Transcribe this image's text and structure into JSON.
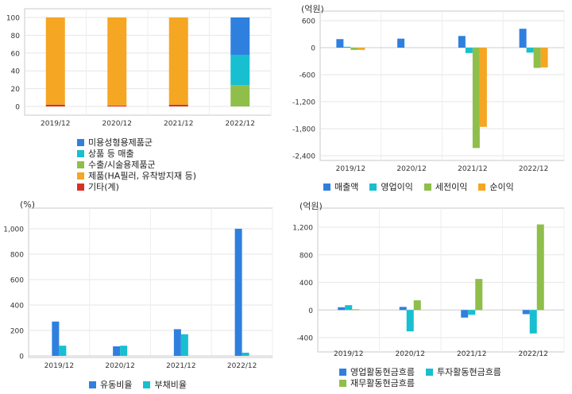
{
  "chart_data": [
    {
      "type": "bar",
      "stacked": true,
      "title": "",
      "unit": "",
      "categories": [
        "2019/12",
        "2020/12",
        "2021/12",
        "2022/12"
      ],
      "ylim": [
        0,
        100
      ],
      "yticks": [
        "0",
        "20",
        "40",
        "60",
        "80",
        "100"
      ],
      "grid": true,
      "legend_position": "bottom",
      "series": [
        {
          "name": "미용성형용제품군",
          "color": "#2f80de",
          "values": [
            0,
            0,
            0,
            42
          ]
        },
        {
          "name": "상품 등 매출",
          "color": "#17bfd0",
          "values": [
            0,
            0,
            0,
            34
          ]
        },
        {
          "name": "수출/시술용제품군",
          "color": "#8fbe4a",
          "values": [
            0,
            0,
            0,
            24
          ]
        },
        {
          "name": "제품(HA필러, 유착방지재 등)",
          "color": "#f5a623",
          "values": [
            98,
            99,
            98,
            0
          ]
        },
        {
          "name": "기타(계)",
          "color": "#d93025",
          "values": [
            2,
            1,
            2,
            0
          ]
        }
      ]
    },
    {
      "type": "bar",
      "title": "",
      "unit": "(억원)",
      "categories": [
        "2019/12",
        "2020/12",
        "2021/12",
        "2022/12"
      ],
      "ylim": [
        -2400,
        600
      ],
      "yticks": [
        "600",
        "0",
        "-600",
        "-1,200",
        "-1,800",
        "-2,400"
      ],
      "grid": true,
      "legend_position": "bottom",
      "series": [
        {
          "name": "매출액",
          "color": "#2f80de",
          "values": [
            190,
            200,
            260,
            420
          ]
        },
        {
          "name": "영업이익",
          "color": "#17bfd0",
          "values": [
            20,
            0,
            -120,
            -110
          ]
        },
        {
          "name": "세전이익",
          "color": "#8fbe4a",
          "values": [
            -50,
            0,
            -2230,
            -450
          ]
        },
        {
          "name": "순이익",
          "color": "#f5a623",
          "values": [
            -50,
            0,
            -1760,
            -440
          ]
        }
      ]
    },
    {
      "type": "bar",
      "title": "",
      "unit": "(%)",
      "categories": [
        "2019/12",
        "2020/12",
        "2021/12",
        "2022/12"
      ],
      "ylim": [
        0,
        1000
      ],
      "yticks": [
        "0",
        "200",
        "400",
        "600",
        "800",
        "1,000"
      ],
      "grid": true,
      "legend_position": "bottom",
      "series": [
        {
          "name": "유동비율",
          "color": "#2f80de",
          "values": [
            270,
            75,
            210,
            1000
          ]
        },
        {
          "name": "부채비율",
          "color": "#17bfd0",
          "values": [
            80,
            80,
            170,
            25
          ]
        }
      ]
    },
    {
      "type": "bar",
      "title": "",
      "unit": "(억원)",
      "categories": [
        "2019/12",
        "2020/12",
        "2021/12",
        "2022/12"
      ],
      "ylim": [
        -400,
        1200
      ],
      "yticks": [
        "1,200",
        "800",
        "400",
        "0",
        "-400"
      ],
      "grid": true,
      "legend_position": "bottom",
      "series": [
        {
          "name": "영업활동현금흐름",
          "color": "#2f80de",
          "values": [
            40,
            45,
            -110,
            -60
          ]
        },
        {
          "name": "투자활동현금흐름",
          "color": "#17bfd0",
          "values": [
            70,
            -310,
            -70,
            -340
          ]
        },
        {
          "name": "재무활동현금흐름",
          "color": "#8fbe4a",
          "values": [
            10,
            140,
            450,
            1240
          ]
        }
      ]
    }
  ]
}
